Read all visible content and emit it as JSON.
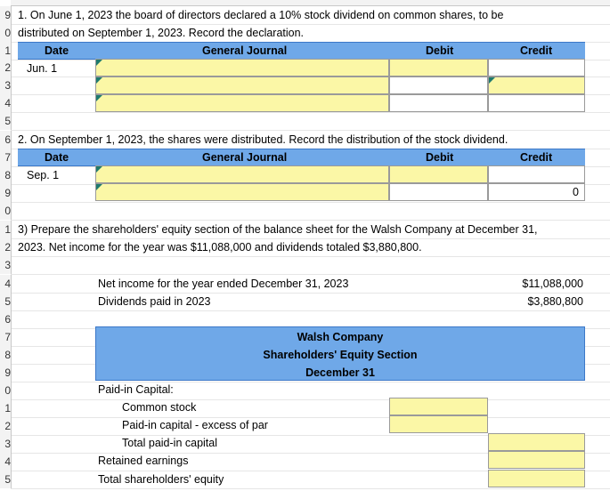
{
  "row_numbers": [
    "9",
    "0",
    "1",
    "2",
    "3",
    "4",
    "5",
    "6",
    "7",
    "8",
    "9",
    "0",
    "1",
    "2",
    "3",
    "4",
    "5",
    "6",
    "7",
    "8",
    "9",
    "0",
    "1",
    "2",
    "3",
    "4",
    "5"
  ],
  "q1": {
    "text_line1": "1. On June 1, 2023 the board of directors declared a 10% stock dividend on common shares, to be",
    "text_line2": "distributed on September 1, 2023. Record the declaration.",
    "hdr_date": "Date",
    "hdr_journal": "General Journal",
    "hdr_debit": "Debit",
    "hdr_credit": "Credit",
    "date": "Jun. 1"
  },
  "q2": {
    "text": "2. On September 1, 2023, the shares were distributed. Record the distribution of the stock dividend.",
    "hdr_date": "Date",
    "hdr_journal": "General Journal",
    "hdr_debit": "Debit",
    "hdr_credit": "Credit",
    "date": "Sep. 1",
    "credit_value": "0"
  },
  "q3": {
    "text_line1": "3) Prepare the shareholders' equity section of the balance sheet for the Walsh Company at December 31,",
    "text_line2": "2023. Net income for the year was $11,088,000 and dividends totaled $3,880,800.",
    "net_income_label": "Net income for the year ended December 31, 2023",
    "net_income_value": "$11,088,000",
    "dividends_label": "Dividends paid in 2023",
    "dividends_value": "$3,880,800",
    "company": "Walsh Company",
    "section": "Shareholders' Equity Section",
    "date": "December 31",
    "paid_in": "Paid-in Capital:",
    "common_stock": "Common stock",
    "excess_par": "Paid-in capital - excess of par",
    "total_paid_in": "Total paid-in capital",
    "retained": "Retained earnings",
    "total_equity": "Total shareholders' equity"
  },
  "colors": {
    "header_blue": "#6fa8e8",
    "input_yellow": "#fbf7a6"
  }
}
